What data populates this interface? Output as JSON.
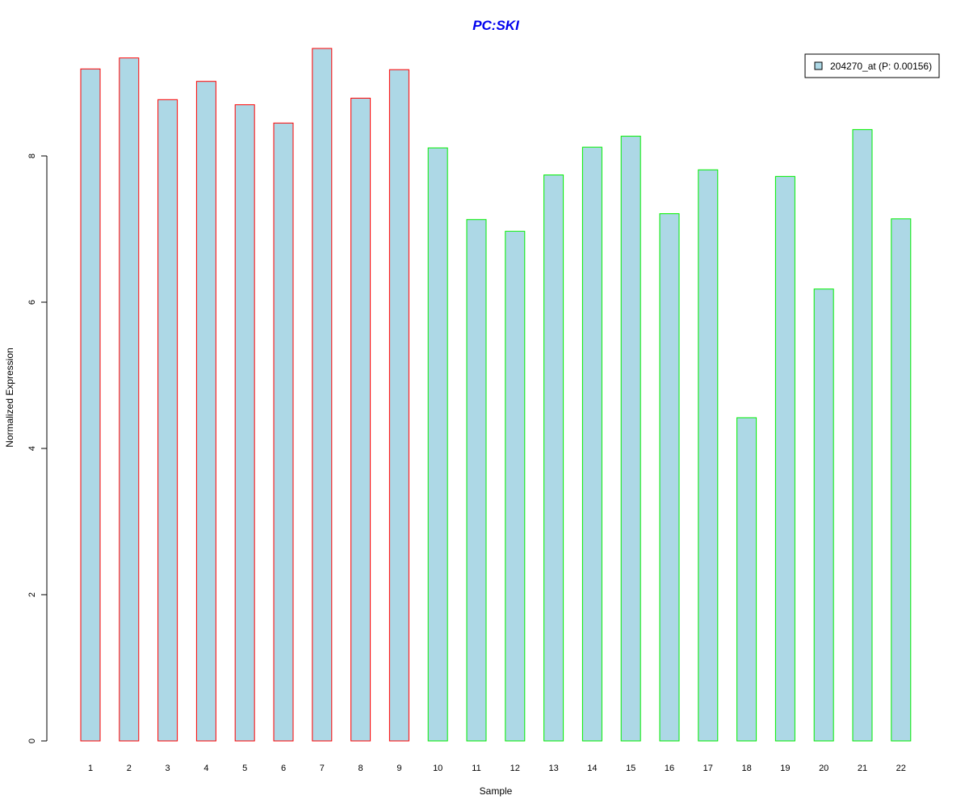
{
  "chart_data": {
    "type": "bar",
    "title": "PC:SKI",
    "title_color": "#0000ee",
    "xlabel": "Sample",
    "ylabel": "Normalized Expression",
    "categories": [
      "1",
      "2",
      "3",
      "4",
      "5",
      "6",
      "7",
      "8",
      "9",
      "10",
      "11",
      "12",
      "13",
      "14",
      "15",
      "16",
      "17",
      "18",
      "19",
      "20",
      "21",
      "22"
    ],
    "y_ticks": [
      "0",
      "2",
      "4",
      "6",
      "8"
    ],
    "ylim": [
      0,
      9.5
    ],
    "grid": false,
    "legend_position": "top-right",
    "series": [
      {
        "name": "204270_at (P: 0.00156)",
        "fill_color": "#add8e6",
        "values": [
          9.19,
          9.34,
          8.77,
          9.02,
          8.7,
          8.45,
          9.47,
          8.79,
          9.18,
          8.11,
          7.13,
          6.97,
          7.74,
          8.12,
          8.27,
          7.21,
          7.81,
          4.42,
          7.72,
          6.18,
          8.36,
          7.14
        ]
      }
    ],
    "bar_border_colors": [
      "#ff0000",
      "#ff0000",
      "#ff0000",
      "#ff0000",
      "#ff0000",
      "#ff0000",
      "#ff0000",
      "#ff0000",
      "#ff0000",
      "#00ee00",
      "#00ee00",
      "#00ee00",
      "#00ee00",
      "#00ee00",
      "#00ee00",
      "#00ee00",
      "#00ee00",
      "#00ee00",
      "#00ee00",
      "#00ee00",
      "#00ee00",
      "#00ee00"
    ]
  }
}
